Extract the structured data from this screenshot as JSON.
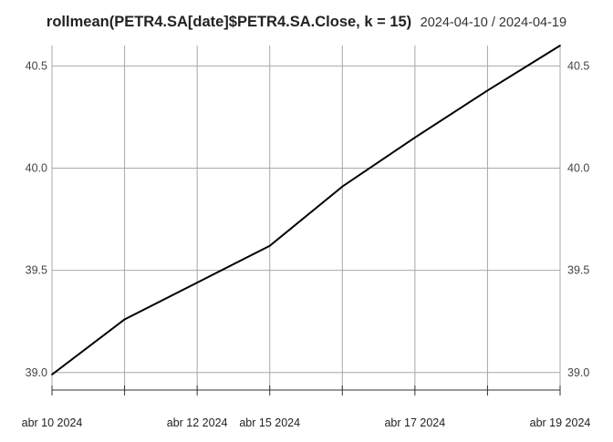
{
  "chart_data": {
    "type": "line",
    "title": "rollmean(PETR4.SA[date]$PETR4.SA.Close, k = 15)",
    "subtitle": "2024-04-10 / 2024-04-19",
    "x": [
      "2024-04-10",
      "2024-04-11",
      "2024-04-12",
      "2024-04-15",
      "2024-04-16",
      "2024-04-17",
      "2024-04-18",
      "2024-04-19"
    ],
    "series": [
      {
        "values": [
          38.99,
          39.26,
          39.44,
          39.62,
          39.91,
          40.15,
          40.38,
          40.6
        ]
      }
    ],
    "ylim": [
      38.99,
      40.6
    ],
    "yticks": [
      {
        "value": 39.0,
        "label": "39.0"
      },
      {
        "value": 39.5,
        "label": "39.5"
      },
      {
        "value": 40.0,
        "label": "40.0"
      },
      {
        "value": 40.5,
        "label": "40.5"
      }
    ],
    "x_major_ticks": [
      {
        "x": "2024-04-10",
        "label": "abr 10 2024"
      },
      {
        "x": "2024-04-12",
        "label": "abr 12 2024"
      },
      {
        "x": "2024-04-15",
        "label": "abr 15 2024"
      },
      {
        "x": "2024-04-17",
        "label": "abr 17 2024"
      },
      {
        "x": "2024-04-19",
        "label": "abr 19 2024"
      }
    ],
    "grid": true,
    "legend": "none",
    "colors": {
      "line": "#000000",
      "grid": "#a8a8a8",
      "axis": "#333333"
    }
  }
}
